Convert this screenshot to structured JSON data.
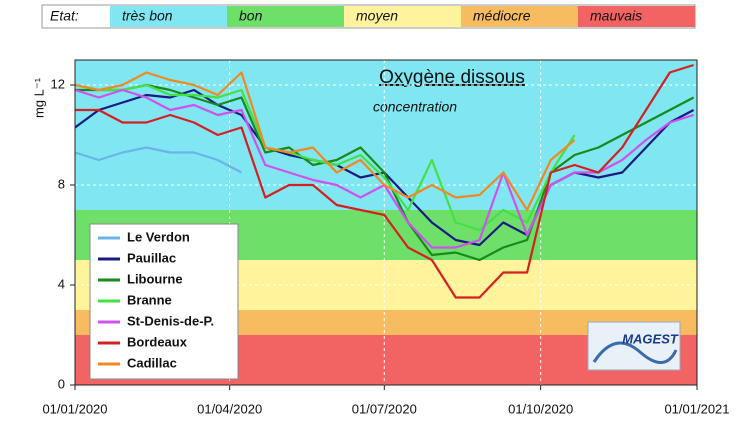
{
  "chart_data": {
    "type": "line",
    "title": "Oxygène dissous",
    "subtitle": "concentration",
    "y_label": "mg L⁻¹",
    "annotation": "MAGEST",
    "condition_scale": {
      "label": "Etat:",
      "classes": [
        {
          "label": "très bon",
          "color": "#80e6f2",
          "from": 7,
          "to": 13
        },
        {
          "label": "bon",
          "color": "#6ee06a",
          "from": 5,
          "to": 7
        },
        {
          "label": "moyen",
          "color": "#fff49c",
          "from": 3,
          "to": 5
        },
        {
          "label": "médiocre",
          "color": "#f7bb60",
          "from": 2,
          "to": 3
        },
        {
          "label": "mauvais",
          "color": "#f26464",
          "from": 0,
          "to": 2
        }
      ]
    },
    "x": [
      "2020-01-01",
      "2020-01-15",
      "2020-01-29",
      "2020-02-12",
      "2020-02-26",
      "2020-03-11",
      "2020-03-25",
      "2020-04-08",
      "2020-04-22",
      "2020-05-06",
      "2020-05-20",
      "2020-06-03",
      "2020-06-17",
      "2020-07-01",
      "2020-07-15",
      "2020-07-29",
      "2020-08-12",
      "2020-08-26",
      "2020-09-09",
      "2020-09-23",
      "2020-10-07",
      "2020-10-21",
      "2020-11-04",
      "2020-11-18",
      "2020-12-02",
      "2020-12-16",
      "2020-12-30"
    ],
    "series": [
      {
        "name": "Le Verdon",
        "color": "#6ab4ea",
        "values": [
          9.3,
          9.0,
          9.3,
          9.5,
          9.3,
          9.3,
          9.0,
          8.5,
          null,
          null,
          null,
          null,
          null,
          null,
          null,
          null,
          null,
          null,
          null,
          null,
          null,
          null,
          null,
          null,
          null,
          null,
          null
        ]
      },
      {
        "name": "Pauillac",
        "color": "#1a1a80",
        "values": [
          10.3,
          11.0,
          11.3,
          11.6,
          11.5,
          11.8,
          11.2,
          10.8,
          9.5,
          9.2,
          9.0,
          8.8,
          8.3,
          8.5,
          7.5,
          6.5,
          5.8,
          5.6,
          6.5,
          6.0,
          8.0,
          8.5,
          8.3,
          8.5,
          9.5,
          10.5,
          11.0
        ]
      },
      {
        "name": "Libourne",
        "color": "#178a1a",
        "values": [
          11.8,
          11.8,
          11.8,
          12.0,
          11.8,
          11.5,
          11.2,
          11.5,
          9.3,
          9.5,
          8.8,
          9.0,
          9.5,
          8.5,
          6.5,
          5.2,
          5.3,
          5.0,
          5.5,
          5.8,
          8.5,
          9.2,
          9.5,
          10.0,
          10.5,
          11.0,
          11.5
        ]
      },
      {
        "name": "Branne",
        "color": "#44e044",
        "values": [
          12.0,
          11.8,
          11.8,
          12.0,
          11.6,
          11.6,
          11.5,
          11.8,
          9.5,
          9.3,
          9.0,
          8.8,
          9.2,
          8.3,
          7.0,
          9.0,
          6.5,
          6.2,
          7.0,
          6.5,
          8.5,
          10.0,
          null,
          null,
          null,
          null,
          null
        ]
      },
      {
        "name": "St-Denis-de-P.",
        "color": "#d050f0",
        "values": [
          11.8,
          11.5,
          11.8,
          11.5,
          11.0,
          11.2,
          10.8,
          11.0,
          8.8,
          8.5,
          8.2,
          8.0,
          7.5,
          8.0,
          6.5,
          5.5,
          5.5,
          5.8,
          8.5,
          6.0,
          8.0,
          8.5,
          8.5,
          9.0,
          9.8,
          10.5,
          10.8
        ]
      },
      {
        "name": "Bordeaux",
        "color": "#d42020",
        "values": [
          11.0,
          11.0,
          10.5,
          10.5,
          10.8,
          10.5,
          10.0,
          10.3,
          7.5,
          8.0,
          8.0,
          7.2,
          7.0,
          6.8,
          5.5,
          5.0,
          3.5,
          3.5,
          4.5,
          4.5,
          8.5,
          8.8,
          8.5,
          9.5,
          11.0,
          12.5,
          12.8
        ]
      },
      {
        "name": "Cadillac",
        "color": "#ee8a20",
        "values": [
          12.0,
          11.8,
          12.0,
          12.5,
          12.2,
          12.0,
          11.6,
          12.5,
          9.5,
          9.3,
          9.5,
          8.5,
          9.0,
          8.0,
          7.5,
          8.0,
          7.5,
          7.6,
          8.5,
          7.0,
          9.0,
          9.8,
          null,
          null,
          null,
          null,
          null
        ]
      }
    ],
    "xlim": [
      "2020-01-01",
      "2021-01-01"
    ],
    "xticks": [
      {
        "value": "2020-01-01",
        "label": "01/01/2020"
      },
      {
        "value": "2020-04-01",
        "label": "01/04/2020"
      },
      {
        "value": "2020-07-01",
        "label": "01/07/2020"
      },
      {
        "value": "2020-10-01",
        "label": "01/10/2020"
      },
      {
        "value": "2021-01-01",
        "label": "01/01/2021"
      }
    ],
    "ylim": [
      0,
      13
    ],
    "yticks": [
      0,
      4,
      8,
      12
    ],
    "grid": true,
    "legend": "lower left"
  }
}
